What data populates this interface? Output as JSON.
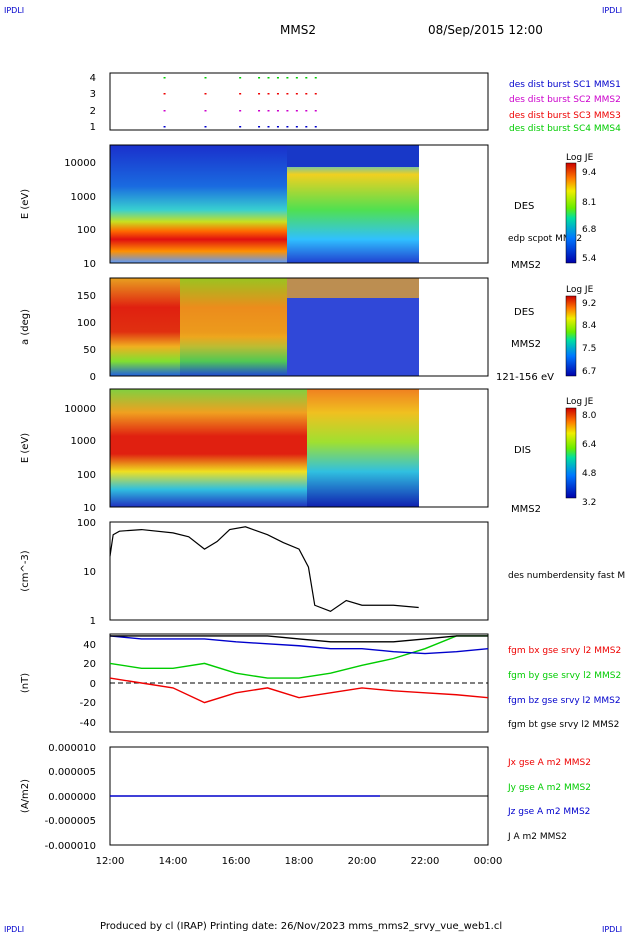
{
  "corner_label": "IPDLI",
  "header": {
    "spacecraft": "MMS2",
    "date": "08/Sep/2015 12:00"
  },
  "footer": "Produced by cl (IRAP)   Printing date: 26/Nov/2023   mms_mms2_srvy_vue_web1.cl",
  "colors": {
    "blue": "#0000cc",
    "magenta": "#cc00cc",
    "red": "#ee0000",
    "green": "#00cc00",
    "black": "#000000"
  },
  "chart_data": {
    "x_axis": {
      "ticks": [
        "12:00",
        "14:00",
        "16:00",
        "18:00",
        "20:00",
        "22:00",
        "00:00"
      ],
      "hours": [
        12,
        14,
        16,
        18,
        20,
        22,
        24
      ]
    },
    "panels": [
      {
        "id": "burst",
        "type": "scatter",
        "yticks": [
          "4",
          "3",
          "2",
          "1"
        ],
        "legend": [
          {
            "label": "des dist burst SC1 MMS1",
            "color": "#0000cc"
          },
          {
            "label": "des dist burst SC2 MMS2",
            "color": "#cc00cc"
          },
          {
            "label": "des dist burst SC3 MMS3",
            "color": "#ee0000"
          },
          {
            "label": "des dist burst SC4 MMS4",
            "color": "#00cc00"
          }
        ],
        "burst_hours": [
          13.7,
          15.0,
          16.1,
          16.7,
          17.0,
          17.3,
          17.6,
          17.9,
          18.2,
          18.5
        ]
      },
      {
        "id": "des_energy",
        "type": "heatmap",
        "ylabel": "E (eV)",
        "yticks": [
          "10000",
          "1000",
          "100",
          "10"
        ],
        "labels": [
          "DES",
          "edp scpot MMS2",
          "MMS2"
        ],
        "colorbar": {
          "title": "Log JE",
          "ticks": [
            "9.4",
            "8.1",
            "6.8",
            "5.4"
          ]
        }
      },
      {
        "id": "des_pitch",
        "type": "heatmap",
        "ylabel": "a (deg)",
        "yticks": [
          "150",
          "100",
          "50",
          "0"
        ],
        "labels": [
          "DES",
          "MMS2",
          "121-156 eV"
        ],
        "colorbar": {
          "title": "Log JE",
          "ticks": [
            "9.2",
            "8.4",
            "7.5",
            "6.7"
          ]
        }
      },
      {
        "id": "dis_energy",
        "type": "heatmap",
        "ylabel": "E (eV)",
        "yticks": [
          "10000",
          "1000",
          "100",
          "10"
        ],
        "labels": [
          "DIS",
          "MMS2"
        ],
        "colorbar": {
          "title": "Log JE",
          "ticks": [
            "8.0",
            "6.4",
            "4.8",
            "3.2"
          ]
        }
      },
      {
        "id": "density",
        "type": "line",
        "ylabel": "(cm^-3)",
        "yticks": [
          "100",
          "10",
          "1"
        ],
        "legend": [
          {
            "label": "des numberdensity fast M",
            "color": "#000000"
          }
        ],
        "x_hours": [
          12.0,
          12.1,
          12.3,
          13.0,
          14.0,
          14.5,
          15.0,
          15.4,
          15.8,
          16.3,
          17.0,
          17.5,
          18.0,
          18.3,
          18.5,
          19.0,
          19.5,
          20.0,
          21.0,
          21.8
        ],
        "values": [
          20,
          55,
          65,
          70,
          60,
          50,
          28,
          40,
          70,
          80,
          55,
          38,
          28,
          12,
          2,
          1.5,
          2.5,
          2,
          2,
          1.8
        ]
      },
      {
        "id": "bfield",
        "type": "line",
        "ylabel": "(nT)",
        "yticks": [
          "40",
          "20",
          "0",
          "-20",
          "-40"
        ],
        "ylim": [
          -50,
          50
        ],
        "x_hours": [
          12,
          13,
          14,
          15,
          16,
          17,
          18,
          19,
          20,
          21,
          22,
          23,
          24
        ],
        "series": [
          {
            "name": "fgm bx gse srvy l2 MMS2",
            "color": "#ee0000",
            "values": [
              5,
              0,
              -5,
              -20,
              -10,
              -5,
              -15,
              -10,
              -5,
              -8,
              -10,
              -12,
              -15
            ]
          },
          {
            "name": "fgm by gse srvy l2 MMS2",
            "color": "#00cc00",
            "values": [
              20,
              15,
              15,
              20,
              10,
              5,
              5,
              10,
              18,
              25,
              35,
              48,
              48
            ]
          },
          {
            "name": "fgm bz gse srvy l2 MMS2",
            "color": "#0000cc",
            "values": [
              48,
              45,
              45,
              45,
              42,
              40,
              38,
              35,
              35,
              32,
              30,
              32,
              35
            ]
          },
          {
            "name": "fgm bt gse srvy l2 MMS2",
            "color": "#000000",
            "values": [
              48,
              48,
              48,
              48,
              48,
              48,
              45,
              42,
              42,
              42,
              45,
              48,
              48
            ]
          }
        ]
      },
      {
        "id": "current",
        "type": "line",
        "ylabel": "(A/m2)",
        "yticks": [
          "0.000010",
          "0.000005",
          "0.000000",
          "-0.000005",
          "-0.000010"
        ],
        "ylim": [
          -1e-05,
          1e-05
        ],
        "series": [
          {
            "name": "Jx gse A m2 MMS2",
            "color": "#ee0000"
          },
          {
            "name": "Jy gse A m2 MMS2",
            "color": "#00cc00"
          },
          {
            "name": "Jz gse A m2 MMS2",
            "color": "#0000cc"
          },
          {
            "name": "J A m2 MMS2",
            "color": "#000000"
          }
        ]
      }
    ]
  }
}
